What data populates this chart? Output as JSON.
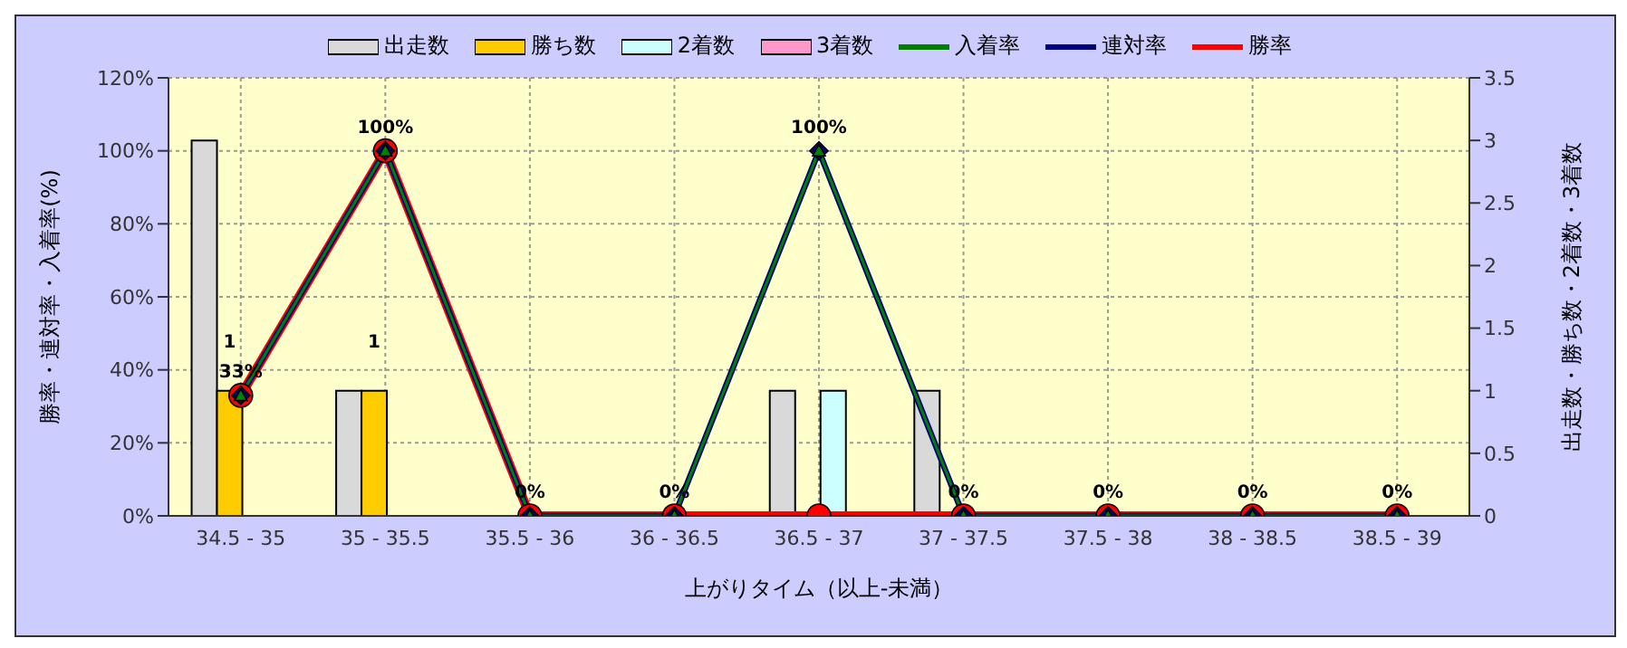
{
  "chart_data": {
    "type": "bar",
    "xlabel": "上がりタイム（以上-未満）",
    "ylabel": "勝率・連対率・入着率(%)",
    "y2label": "出走数・勝ち数・2着数・3着数",
    "categories": [
      "34.5 - 35",
      "35 - 35.5",
      "35.5 - 36",
      "36 - 36.5",
      "36.5 - 37",
      "37 - 37.5",
      "37.5 - 38",
      "38 - 38.5",
      "38.5 - 39"
    ],
    "series": [
      {
        "name": "出走数",
        "axis": "y2",
        "color": "#d9d9d9",
        "values": [
          3,
          1,
          0,
          0,
          1,
          1,
          0,
          0,
          0
        ]
      },
      {
        "name": "勝ち数",
        "axis": "y2",
        "color": "#ffcc00",
        "values": [
          1,
          1,
          0,
          0,
          0,
          0,
          0,
          0,
          0
        ],
        "value_labels": [
          "1",
          "1",
          null,
          null,
          null,
          null,
          null,
          null,
          null
        ]
      },
      {
        "name": "2着数",
        "axis": "y2",
        "color": "#ccffff",
        "values": [
          0,
          0,
          0,
          0,
          1,
          0,
          0,
          0,
          0
        ]
      },
      {
        "name": "3着数",
        "axis": "y2",
        "color": "#ff99cc",
        "values": [
          0,
          0,
          0,
          0,
          0,
          0,
          0,
          0,
          0
        ]
      },
      {
        "name": "入着率",
        "type": "line",
        "marker": "triangle",
        "color": "#008000",
        "values": [
          33,
          100,
          0,
          0,
          100,
          0,
          0,
          0,
          0
        ]
      },
      {
        "name": "連対率",
        "type": "line",
        "marker": "diamond",
        "color": "#000080",
        "values": [
          33,
          100,
          0,
          0,
          100,
          0,
          0,
          0,
          0
        ],
        "value_labels": [
          "33%",
          "100%",
          "0%",
          "0%",
          "100%",
          "0%",
          "0%",
          "0%",
          "0%"
        ]
      },
      {
        "name": "勝率",
        "type": "line",
        "marker": "circle",
        "color": "#ff0000",
        "values": [
          33,
          100,
          0,
          0,
          0,
          0,
          0,
          0,
          0
        ]
      }
    ],
    "ylim": [
      0,
      120
    ],
    "yticks": [
      {
        "value": 0,
        "label": "0%"
      },
      {
        "value": 20,
        "label": "20%"
      },
      {
        "value": 40,
        "label": "40%"
      },
      {
        "value": 60,
        "label": "60%"
      },
      {
        "value": 80,
        "label": "80%"
      },
      {
        "value": 100,
        "label": "100%"
      },
      {
        "value": 120,
        "label": "120%"
      }
    ],
    "y2lim": [
      0,
      3.5
    ],
    "y2ticks": [
      0,
      0.5,
      1,
      1.5,
      2,
      2.5,
      3,
      3.5
    ],
    "grid": true,
    "legend": "top"
  }
}
